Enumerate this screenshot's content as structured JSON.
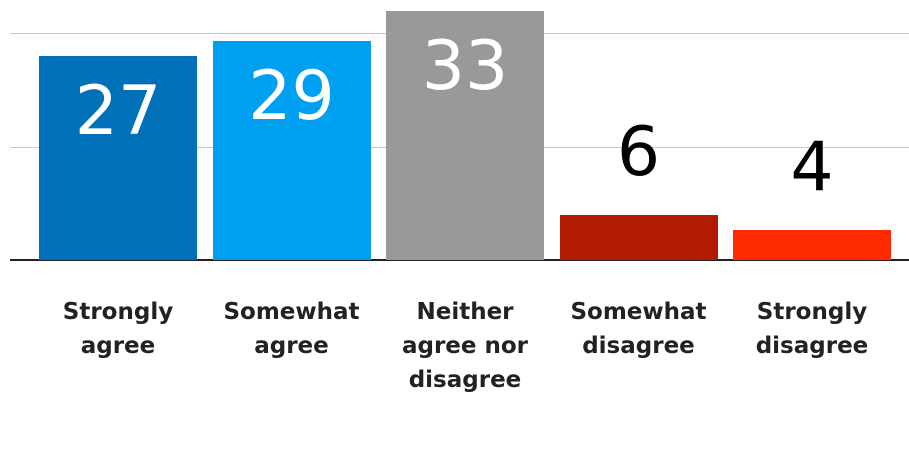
{
  "chart_data": {
    "type": "bar",
    "categories": [
      "Strongly agree",
      "Somewhat agree",
      "Neither agree nor disagree",
      "Somewhat disagree",
      "Strongly disagree"
    ],
    "series": [
      {
        "values": [
          27,
          29,
          33,
          6,
          4
        ],
        "colors": [
          "#0070b8",
          "#00a0f0",
          "#999999",
          "#b31b00",
          "#ff2a00"
        ]
      }
    ],
    "ylim": [
      0,
      34.4
    ],
    "yticks": [
      0,
      15,
      30
    ],
    "grid": true
  }
}
